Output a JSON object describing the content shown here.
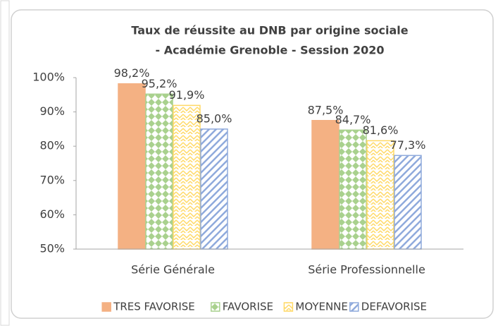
{
  "chart_data": {
    "type": "bar",
    "title": "Taux de réussite au DNB par origine sociale",
    "subtitle": "- Académie Grenoble - Session 2020",
    "categories": [
      "Série Générale",
      "Série Professionnelle"
    ],
    "series": [
      {
        "name": "TRES FAVORISE",
        "color": "#f4b183",
        "pattern": "solid",
        "values": [
          98.2,
          87.5
        ],
        "value_labels": [
          "98,2%",
          "87,5%"
        ]
      },
      {
        "name": "FAVORISE",
        "color": "#a9d18e",
        "pattern": "diamonds",
        "values": [
          95.2,
          84.7
        ],
        "value_labels": [
          "95,2%",
          "84,7%"
        ]
      },
      {
        "name": "MOYENNE",
        "color": "#ffd966",
        "pattern": "zigzag",
        "values": [
          91.9,
          81.6
        ],
        "value_labels": [
          "91,9%",
          "81,6%"
        ]
      },
      {
        "name": "DEFAVORISE",
        "color": "#8faadc",
        "pattern": "stripes",
        "values": [
          85.0,
          77.3
        ],
        "value_labels": [
          "85,0%",
          "77,3%"
        ]
      }
    ],
    "ylim": [
      50,
      100
    ],
    "yticks": [
      {
        "value": 50,
        "label": "50%"
      },
      {
        "value": 60,
        "label": "60%"
      },
      {
        "value": 70,
        "label": "70%"
      },
      {
        "value": 80,
        "label": "80%"
      },
      {
        "value": 90,
        "label": "90%"
      },
      {
        "value": 100,
        "label": "100%"
      }
    ],
    "grid": false,
    "legend": "bottom"
  }
}
